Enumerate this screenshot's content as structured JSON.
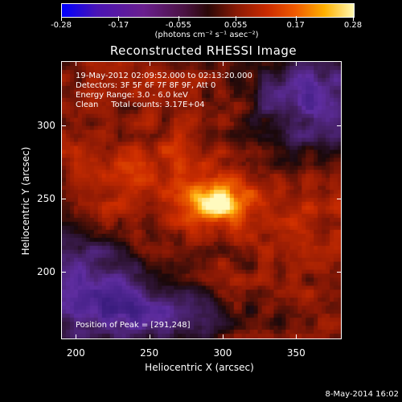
{
  "colorbar": {
    "ticks": [
      "-0.28",
      "-0.17",
      "-0.055",
      "0.055",
      "0.17",
      "0.28"
    ],
    "tick_values": [
      -0.28,
      -0.17,
      -0.055,
      0.055,
      0.17,
      0.28
    ],
    "range": [
      -0.28,
      0.28
    ],
    "unit_label": "(photons cm⁻² s⁻¹ asec⁻²)",
    "colors": [
      "#0000ff",
      "#6a1f8e",
      "#2a0707",
      "#c92a00",
      "#ffb000",
      "#fff8b0"
    ]
  },
  "title": "Reconstructed RHESSI Image",
  "annotations": {
    "time_range": "19-May-2012 02:09:52.000 to 02:13:20.000",
    "detectors": "Detectors: 3F 5F 6F 7F 8F 9F, Att 0",
    "energy": "Energy Range: 3.0 - 6.0 keV",
    "clean": "Clean     Total counts: 3.17E+04",
    "peak": "Position of Peak = [291,248]"
  },
  "axes": {
    "xlabel": "Heliocentric X (arcsec)",
    "ylabel": "Heliocentric Y (arcsec)",
    "xticks": [
      "200",
      "250",
      "300",
      "350"
    ],
    "xtick_values": [
      200,
      250,
      300,
      350
    ],
    "xlim": [
      190,
      381
    ],
    "yticks": [
      "200",
      "250",
      "300"
    ],
    "ytick_values": [
      200,
      250,
      300
    ],
    "ylim": [
      154,
      344
    ]
  },
  "peak_position": [
    291,
    248
  ],
  "timestamp": "8-May-2014 16:02"
}
